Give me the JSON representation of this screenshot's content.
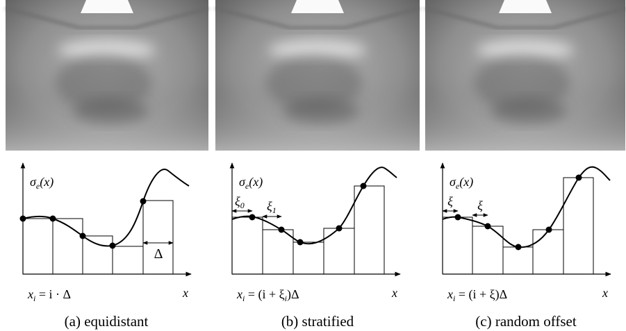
{
  "panels": [
    {
      "y_label": [
        "σ",
        "e",
        "(x)"
      ],
      "formula": [
        "x",
        "i",
        " = i · Δ"
      ],
      "x_label": "x",
      "annotations": [
        "Δ"
      ],
      "caption": "(a) equidistant"
    },
    {
      "y_label": [
        "σ",
        "e",
        "(x)"
      ],
      "formula": [
        "x",
        "i",
        " = (i + ξ",
        "i",
        ")Δ"
      ],
      "x_label": "x",
      "annotations": [
        [
          "ξ",
          "0"
        ],
        [
          "ξ",
          "1"
        ]
      ],
      "caption": "(b) stratified"
    },
    {
      "y_label": [
        "σ",
        "e",
        "(x)"
      ],
      "formula": [
        "x",
        "i",
        " = (i + ξ)Δ"
      ],
      "x_label": "x",
      "annotations": [
        "ξ",
        "ξ"
      ],
      "caption": "(c) random offset"
    }
  ]
}
